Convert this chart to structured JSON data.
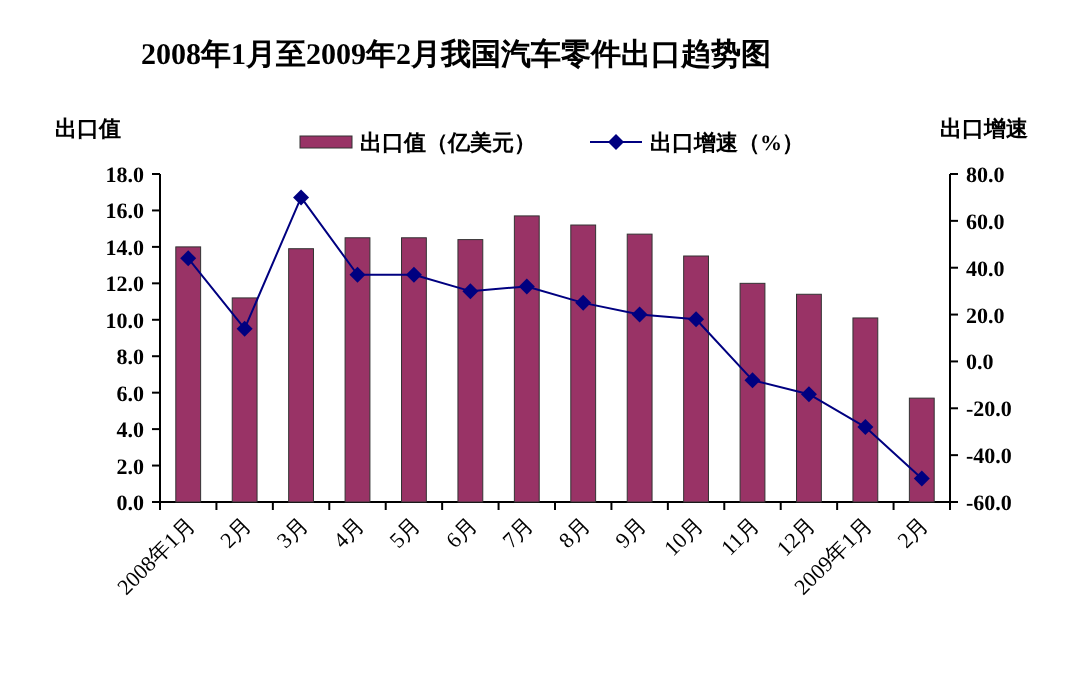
{
  "chart_data": {
    "type": "bar",
    "title": "2008年1月至2009年2月我国汽车零件出口趋势图",
    "ylabel": "出口值",
    "y2label": "出口增速",
    "categories": [
      "2008年1月",
      "2月",
      "3月",
      "4月",
      "5月",
      "6月",
      "7月",
      "8月",
      "9月",
      "10月",
      "11月",
      "12月",
      "2009年1月",
      "2月"
    ],
    "series": [
      {
        "name": "出口值（亿美元）",
        "color": "#993366",
        "values": [
          14.0,
          11.2,
          13.9,
          14.5,
          14.5,
          14.4,
          15.7,
          15.2,
          14.7,
          13.5,
          12.0,
          11.4,
          10.1,
          5.7
        ]
      },
      {
        "name": "出口增速（%）",
        "type": "line",
        "axis": "y2",
        "color": "#000080",
        "marker": "diamond",
        "values": [
          44,
          14,
          70,
          37,
          37,
          30,
          32,
          25,
          20,
          18,
          -8,
          -14,
          -28,
          -50
        ]
      }
    ],
    "ylim": [
      0,
      18
    ],
    "yticks": [
      {
        "value": 0,
        "label": "0.0"
      },
      {
        "value": 2,
        "label": "2.0"
      },
      {
        "value": 4,
        "label": "4.0"
      },
      {
        "value": 6,
        "label": "6.0"
      },
      {
        "value": 8,
        "label": "8.0"
      },
      {
        "value": 10,
        "label": "10.0"
      },
      {
        "value": 12,
        "label": "12.0"
      },
      {
        "value": 14,
        "label": "14.0"
      },
      {
        "value": 16,
        "label": "16.0"
      },
      {
        "value": 18,
        "label": "18.0"
      }
    ],
    "y2lim": [
      -60,
      80
    ],
    "y2ticks": [
      {
        "value": -60,
        "label": "-60.0"
      },
      {
        "value": -40,
        "label": "-40.0"
      },
      {
        "value": -20,
        "label": "-20.0"
      },
      {
        "value": 0,
        "label": "0.0"
      },
      {
        "value": 20,
        "label": "20.0"
      },
      {
        "value": 40,
        "label": "40.0"
      },
      {
        "value": 60,
        "label": "60.0"
      },
      {
        "value": 80,
        "label": "80.0"
      }
    ],
    "grid": false,
    "legend": "top"
  }
}
